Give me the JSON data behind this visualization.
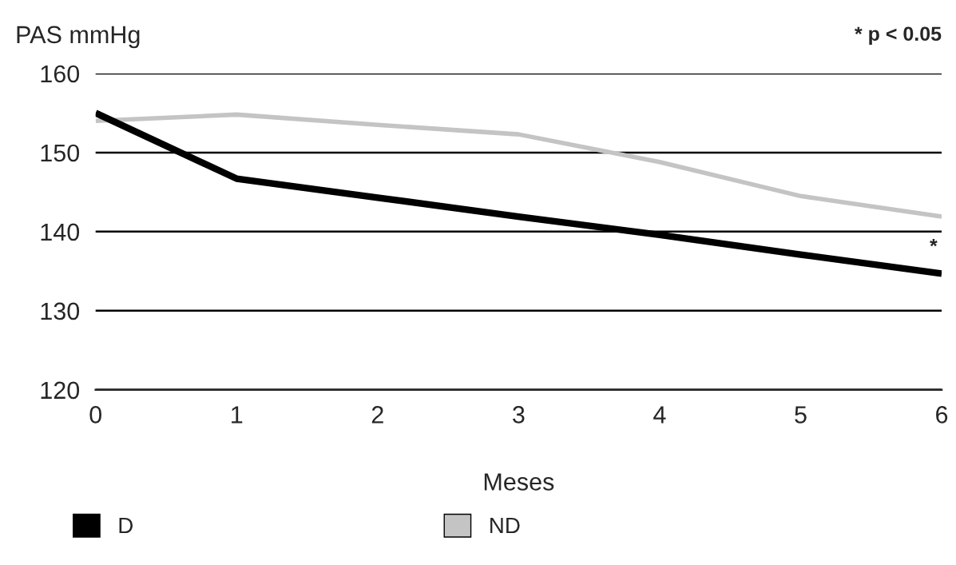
{
  "chart_data": {
    "type": "line",
    "ylabel": "PAS mmHg",
    "xlabel": "Meses",
    "x": [
      0,
      1,
      2,
      3,
      4,
      5,
      6
    ],
    "series": [
      {
        "name": "D",
        "color": "#000000",
        "values": [
          155,
          146.7,
          144.3,
          141.9,
          139.6,
          137.1,
          134.7
        ]
      },
      {
        "name": "ND",
        "color": "#c4c4c4",
        "values": [
          154,
          154.8,
          153.5,
          152.3,
          148.8,
          144.5,
          141.9
        ]
      }
    ],
    "xlim": [
      0,
      6
    ],
    "xticks": [
      0,
      1,
      2,
      3,
      4,
      5,
      6
    ],
    "ylim": [
      120,
      160
    ],
    "yticks": [
      120,
      130,
      140,
      150,
      160
    ],
    "grid": "y",
    "legend": "bottom",
    "marker": "none",
    "line_style": "solid",
    "annotations": [
      "* p < 0.05",
      "*"
    ]
  }
}
